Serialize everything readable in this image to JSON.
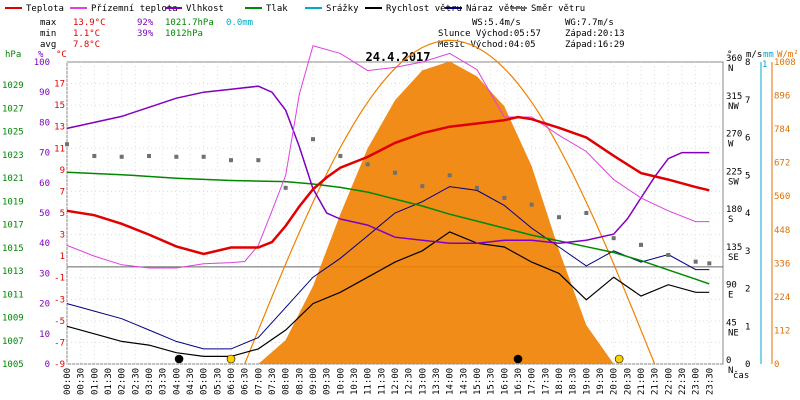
{
  "chart_data": {
    "type": "line",
    "title": "24.4.2017",
    "legend": [
      {
        "label": "Teplota",
        "color": "#e00000"
      },
      {
        "label": "Přízemní teplota",
        "color": "#e040e0"
      },
      {
        "label": "Vlhkost",
        "color": "#8000c0"
      },
      {
        "label": "Tlak",
        "color": "#008800"
      },
      {
        "label": "Srážky",
        "color": "#00aacc"
      },
      {
        "label": "Rychlost větru",
        "color": "#000000"
      },
      {
        "label": "Náraz větru",
        "color": "#000080"
      },
      {
        "label": "Směr větru",
        "color": "#707070"
      }
    ],
    "stats": {
      "max_label": "max",
      "min_label": "min",
      "avg_label": "avg",
      "temp_max": "13.9°C",
      "hum_max": "92%",
      "press_max": "1021.7hPa",
      "rain_total": "0.0mm",
      "temp_min": "1.1°C",
      "hum_min": "39%",
      "press_min": "1012hPa",
      "temp_avg": "7.8°C",
      "wind_speed": "WS:5.4m/s",
      "wind_gust": "WG:7.7m/s",
      "sun": "Slunce Východ:05:57",
      "sun_set": "Západ:20:13",
      "moon": "Měsíc  Východ:04:05",
      "moon_set": "Západ:16:29"
    },
    "axes": {
      "hpa_title": "hPa",
      "pct_title": "%",
      "c_title": "°C",
      "deg_title": "°",
      "ms_title": "m/s",
      "mm_title": "mm",
      "wm_title": "W/m²",
      "mm_top": "1",
      "x_unit": "čas",
      "hpa_ticks": [
        "1005",
        "1007",
        "1009",
        "1011",
        "1013",
        "1015",
        "1017",
        "1019",
        "1021",
        "1023",
        "1025",
        "1027",
        "1029"
      ],
      "pct_ticks": [
        "0",
        "10",
        "20",
        "30",
        "40",
        "50",
        "60",
        "70",
        "80",
        "90",
        "100"
      ],
      "c_ticks": [
        "-9",
        "-7",
        "-5",
        "-3",
        "-1",
        "1",
        "3",
        "5",
        "7",
        "9",
        "11",
        "13",
        "15",
        "17"
      ],
      "deg_ticks": [
        {
          "v": "0",
          "d": "N"
        },
        {
          "v": "45",
          "d": "NE"
        },
        {
          "v": "90",
          "d": "E"
        },
        {
          "v": "135",
          "d": "SE"
        },
        {
          "v": "180",
          "d": "S"
        },
        {
          "v": "225",
          "d": "SW"
        },
        {
          "v": "270",
          "d": "W"
        },
        {
          "v": "315",
          "d": "NW"
        },
        {
          "v": "360",
          "d": "N"
        }
      ],
      "ms_ticks": [
        "0",
        "1",
        "2",
        "3",
        "4",
        "5",
        "6",
        "7",
        "8"
      ],
      "wm_ticks": [
        "0",
        "112",
        "224",
        "336",
        "448",
        "560",
        "672",
        "784",
        "896",
        "1008"
      ],
      "time_ticks": [
        "00:00",
        "00:30",
        "01:00",
        "01:30",
        "02:00",
        "02:30",
        "03:00",
        "03:30",
        "04:00",
        "04:30",
        "05:00",
        "05:30",
        "06:00",
        "06:30",
        "07:00",
        "07:30",
        "08:00",
        "08:30",
        "09:00",
        "09:30",
        "10:00",
        "10:30",
        "11:00",
        "11:30",
        "12:00",
        "12:30",
        "13:00",
        "13:30",
        "14:00",
        "14:30",
        "15:00",
        "15:30",
        "16:00",
        "16:30",
        "17:00",
        "17:30",
        "18:00",
        "18:30",
        "19:00",
        "19:30",
        "20:00",
        "20:30",
        "21:00",
        "21:30",
        "22:00",
        "22:30",
        "23:00",
        "23:30"
      ]
    },
    "series": [
      {
        "name": "Teplota",
        "unit": "°C",
        "x": [
          0,
          1,
          2,
          3,
          4,
          5,
          6,
          6.5,
          7,
          7.5,
          8,
          8.5,
          9,
          9.5,
          10,
          11,
          12,
          13,
          14,
          15,
          16,
          16.5,
          17,
          18,
          19,
          20,
          21,
          22,
          23,
          23.5
        ],
        "y": [
          5.2,
          4.8,
          4.0,
          3.0,
          1.9,
          1.2,
          1.8,
          1.8,
          1.8,
          2.3,
          3.8,
          5.6,
          7.2,
          8.3,
          9.2,
          10.2,
          11.5,
          12.4,
          13.0,
          13.3,
          13.6,
          13.9,
          13.7,
          12.9,
          12.0,
          10.3,
          8.7,
          8.1,
          7.4,
          7.1
        ]
      },
      {
        "name": "Přízemní teplota",
        "unit": "°C",
        "x": [
          0,
          1,
          2,
          3,
          4,
          5,
          6,
          6.5,
          7,
          7.5,
          8,
          8.5,
          9,
          10,
          11,
          12,
          13,
          14,
          15,
          16,
          17,
          18,
          19,
          20,
          21,
          22,
          23,
          23.5
        ],
        "y": [
          2.0,
          1.0,
          0.2,
          -0.1,
          -0.1,
          0.3,
          0.4,
          0.5,
          2.0,
          5.2,
          8.5,
          16.0,
          20.5,
          19.8,
          18.2,
          18.5,
          19.0,
          19.8,
          18.3,
          13.9,
          13.9,
          12.2,
          10.7,
          8.1,
          6.4,
          5.2,
          4.2,
          4.2
        ]
      },
      {
        "name": "Vlhkost",
        "unit": "%",
        "x": [
          0,
          1,
          2,
          3,
          4,
          5,
          6,
          7,
          7.5,
          8,
          8.5,
          9,
          9.5,
          10,
          11,
          12,
          13,
          14,
          15,
          16,
          17,
          18,
          19,
          20,
          20.5,
          21,
          21.5,
          22,
          22.5,
          23,
          23.5
        ],
        "y": [
          78,
          80,
          82,
          85,
          88,
          90,
          91,
          92,
          90,
          84,
          72,
          58,
          50,
          48,
          46,
          42,
          41,
          40,
          40,
          41,
          41,
          40,
          41,
          43,
          48,
          55,
          62,
          68,
          70,
          70,
          70
        ]
      },
      {
        "name": "Tlak",
        "unit": "hPa",
        "x": [
          0,
          2,
          4,
          6,
          8,
          9,
          10,
          11,
          12,
          13,
          14,
          15,
          16,
          17,
          18,
          19,
          20,
          21,
          22,
          23,
          23.5
        ],
        "y": [
          1021.5,
          1021.3,
          1021.0,
          1020.8,
          1020.7,
          1020.5,
          1020.2,
          1019.8,
          1019.2,
          1018.6,
          1017.9,
          1017.3,
          1016.7,
          1016.1,
          1015.6,
          1015.1,
          1014.6,
          1013.9,
          1013.1,
          1012.3,
          1011.9
        ]
      },
      {
        "name": "Rychlost větru",
        "unit": "m/s",
        "x": [
          0,
          1,
          2,
          3,
          4,
          5,
          6,
          7,
          8,
          9,
          10,
          11,
          12,
          13,
          14,
          15,
          16,
          17,
          18,
          19,
          20,
          21,
          22,
          23,
          23.5
        ],
        "y": [
          1.0,
          0.8,
          0.6,
          0.5,
          0.3,
          0.2,
          0.2,
          0.4,
          0.9,
          1.6,
          1.9,
          2.3,
          2.7,
          3.0,
          3.5,
          3.2,
          3.1,
          2.7,
          2.4,
          1.7,
          2.3,
          1.8,
          2.1,
          1.9,
          1.9
        ]
      },
      {
        "name": "Náraz větru",
        "unit": "m/s",
        "x": [
          0,
          1,
          2,
          3,
          4,
          5,
          6,
          7,
          8,
          9,
          10,
          11,
          12,
          13,
          14,
          15,
          16,
          17,
          18,
          19,
          20,
          21,
          22,
          23,
          23.5
        ],
        "y": [
          1.6,
          1.4,
          1.2,
          0.9,
          0.6,
          0.4,
          0.4,
          0.7,
          1.5,
          2.3,
          2.8,
          3.4,
          4.0,
          4.3,
          4.7,
          4.6,
          4.2,
          3.6,
          3.1,
          2.6,
          3.0,
          2.7,
          2.9,
          2.5,
          2.5
        ]
      },
      {
        "name": "Směr větru",
        "unit": "°",
        "x": [
          0,
          1,
          2,
          3,
          4,
          5,
          6,
          7,
          8,
          9,
          10,
          11,
          12,
          13,
          14,
          15,
          16,
          17,
          18,
          19,
          20,
          21,
          22,
          23,
          23.5
        ],
        "y": [
          262,
          248,
          247,
          248,
          247,
          247,
          243,
          243,
          210,
          268,
          248,
          238,
          228,
          212,
          225,
          210,
          198,
          190,
          175,
          180,
          150,
          142,
          130,
          122,
          120
        ]
      },
      {
        "name": "Sluneční záření",
        "unit": "W/m²",
        "x": [
          7,
          8,
          9,
          10,
          11,
          12,
          13,
          14,
          15,
          16,
          17,
          18,
          19,
          20
        ],
        "y": [
          0,
          80,
          260,
          500,
          720,
          880,
          980,
          1010,
          960,
          860,
          660,
          380,
          130,
          0
        ]
      }
    ],
    "xlim": [
      0,
      24
    ],
    "ylim_c": [
      -9,
      19
    ],
    "ylim_hpa": [
      1005,
      1031
    ],
    "ylim_pct": [
      0,
      100
    ],
    "ylim_ms": [
      0,
      8
    ],
    "ylim_wm": [
      0,
      1008
    ],
    "ylim_deg": [
      0,
      360
    ]
  }
}
